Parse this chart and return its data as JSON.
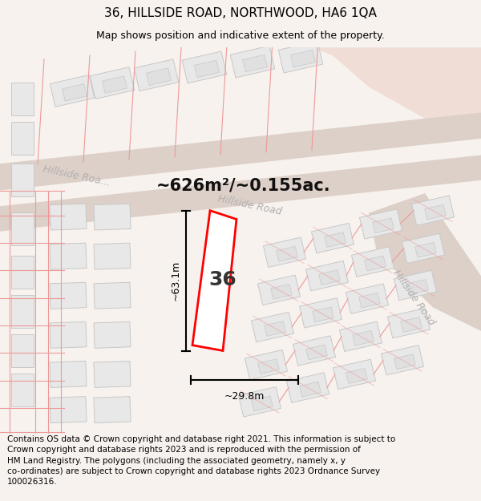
{
  "title": "36, HILLSIDE ROAD, NORTHWOOD, HA6 1QA",
  "subtitle": "Map shows position and indicative extent of the property.",
  "footer": "Contains OS data © Crown copyright and database right 2021. This information is subject to\nCrown copyright and database rights 2023 and is reproduced with the permission of\nHM Land Registry. The polygons (including the associated geometry, namely x, y\nco-ordinates) are subject to Crown copyright and database rights 2023 Ordnance Survey\n100026316.",
  "area_label": "~626m²/~0.155ac.",
  "width_label": "~29.8m",
  "height_label": "~63.1m",
  "property_number": "36",
  "bg_color": "#f7f2ee",
  "map_bg": "#ffffff",
  "building_fill": "#e8e8e8",
  "building_stroke": "#c8c8c8",
  "property_fill": "#ffffff",
  "property_stroke": "#ff0000",
  "road_label_color": "#b0b0b0",
  "dim_color": "#000000",
  "title_fontsize": 11,
  "subtitle_fontsize": 9,
  "footer_fontsize": 7.5
}
